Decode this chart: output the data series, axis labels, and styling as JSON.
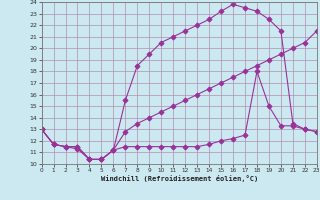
{
  "xlabel": "Windchill (Refroidissement éolien,°C)",
  "bg_color": "#cce8f0",
  "grid_color": "#b090b0",
  "line_color": "#993399",
  "marker": "D",
  "xmin": 0,
  "xmax": 23,
  "ymin": 10,
  "ymax": 24,
  "line1_x": [
    0,
    1,
    2,
    3,
    4,
    5,
    6,
    7,
    8,
    9,
    10,
    11,
    12,
    13,
    14,
    15,
    16,
    17,
    18,
    19,
    20,
    21,
    22,
    23
  ],
  "line1_y": [
    13,
    11.7,
    11.5,
    11.5,
    10.4,
    10.4,
    11.2,
    12.8,
    13.5,
    14.0,
    14.5,
    15.0,
    15.5,
    16.0,
    16.5,
    17.0,
    17.5,
    18.0,
    18.5,
    19.0,
    19.5,
    20.0,
    20.5,
    21.5
  ],
  "line2_x": [
    0,
    1,
    2,
    3,
    4,
    5,
    6,
    7,
    8,
    9,
    10,
    11,
    12,
    13,
    14,
    15,
    16,
    17,
    18,
    19,
    20,
    21,
    22,
    23
  ],
  "line2_y": [
    13,
    11.7,
    11.5,
    11.5,
    10.4,
    10.4,
    11.2,
    15.5,
    18.5,
    19.5,
    20.5,
    21.0,
    21.5,
    22.0,
    22.5,
    23.2,
    23.8,
    23.5,
    23.2,
    22.5,
    21.5,
    13.5,
    13.0,
    12.8
  ],
  "line3_x": [
    0,
    1,
    2,
    3,
    4,
    5,
    6,
    7,
    8,
    9,
    10,
    11,
    12,
    13,
    14,
    15,
    16,
    17,
    18,
    19,
    20,
    21,
    22,
    23
  ],
  "line3_y": [
    13,
    11.7,
    11.5,
    11.3,
    10.4,
    10.4,
    11.2,
    11.5,
    11.5,
    11.5,
    11.5,
    11.5,
    11.5,
    11.5,
    11.7,
    12.0,
    12.2,
    12.5,
    18.0,
    15.0,
    13.3,
    13.3,
    13.0,
    12.8
  ]
}
